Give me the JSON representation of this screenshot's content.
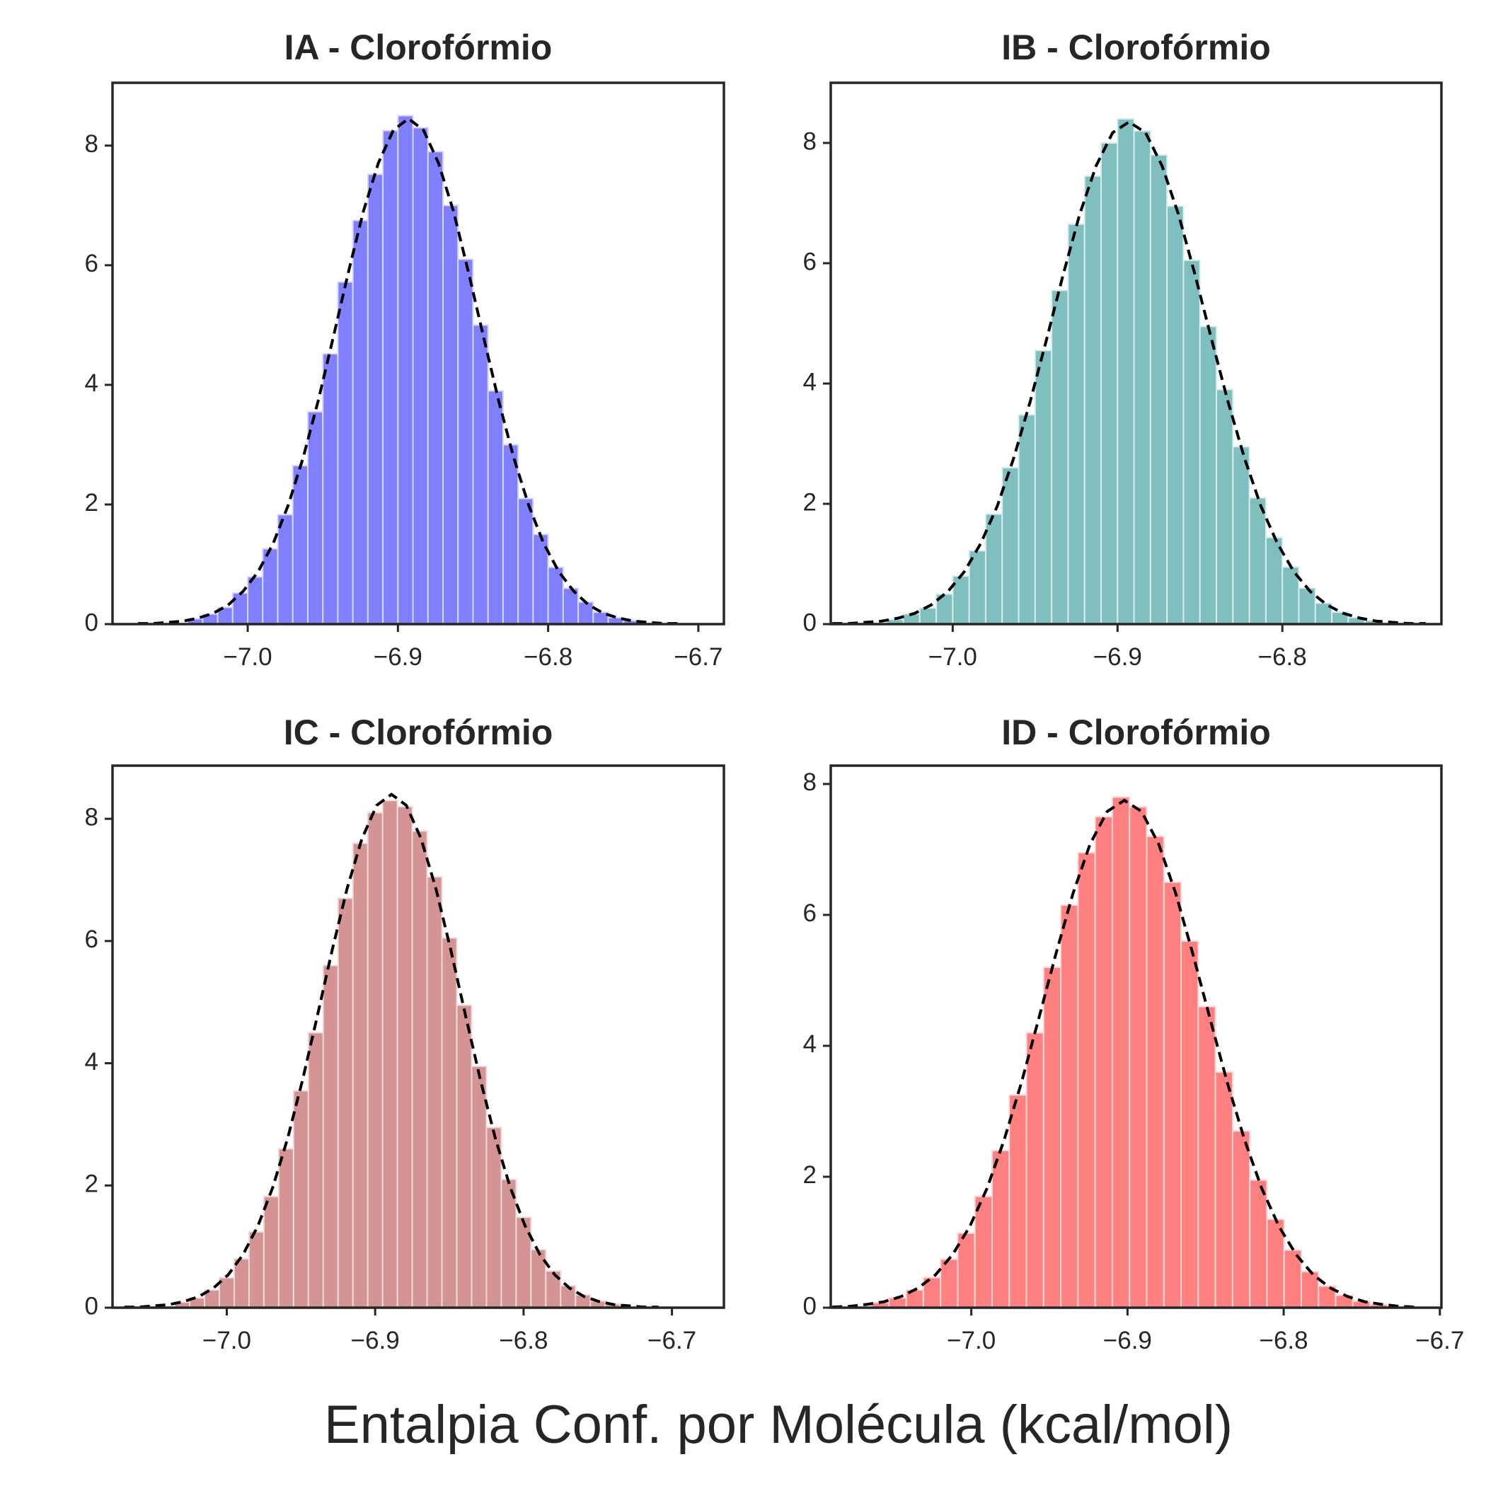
{
  "xlabel": "Entalpia Conf. por Molécula (kcal/mol)",
  "chart_data": [
    {
      "type": "histogram",
      "title": "IA - Clorofórmio",
      "color": "#8080ff",
      "edgecolor": "#d8d8ff",
      "bins": [
        -7.04,
        -7.03,
        -7.02,
        -7.01,
        -7.0,
        -6.99,
        -6.98,
        -6.97,
        -6.96,
        -6.95,
        -6.94,
        -6.93,
        -6.92,
        -6.91,
        -6.9,
        -6.89,
        -6.88,
        -6.87,
        -6.86,
        -6.85,
        -6.84,
        -6.83,
        -6.82,
        -6.81,
        -6.8,
        -6.79,
        -6.78,
        -6.77,
        -6.76,
        -6.75,
        -6.74
      ],
      "values": [
        0.09,
        0.17,
        0.28,
        0.52,
        0.79,
        1.26,
        1.83,
        2.65,
        3.55,
        4.52,
        5.72,
        6.75,
        7.52,
        8.25,
        8.5,
        8.3,
        7.9,
        7.0,
        6.1,
        5.0,
        3.9,
        3.0,
        2.1,
        1.5,
        0.95,
        0.6,
        0.37,
        0.2,
        0.11,
        0.06
      ],
      "fit": {
        "color": "#000000",
        "linestyle": "dashed",
        "x": [
          -7.073,
          -7.063,
          -7.053,
          -7.043,
          -7.033,
          -7.023,
          -7.013,
          -7.003,
          -6.993,
          -6.983,
          -6.973,
          -6.963,
          -6.953,
          -6.943,
          -6.933,
          -6.923,
          -6.913,
          -6.903,
          -6.893,
          -6.883,
          -6.873,
          -6.863,
          -6.853,
          -6.843,
          -6.833,
          -6.823,
          -6.813,
          -6.803,
          -6.793,
          -6.783,
          -6.773,
          -6.763,
          -6.753,
          -6.743,
          -6.733,
          -6.723,
          -6.713
        ],
        "y": [
          0.01,
          0.01,
          0.03,
          0.05,
          0.1,
          0.18,
          0.32,
          0.55,
          0.88,
          1.35,
          1.99,
          2.79,
          3.74,
          4.8,
          5.88,
          6.9,
          7.71,
          8.26,
          8.45,
          8.26,
          7.71,
          6.9,
          5.88,
          4.8,
          3.74,
          2.79,
          1.99,
          1.35,
          0.88,
          0.55,
          0.32,
          0.18,
          0.1,
          0.05,
          0.03,
          0.01,
          0.01
        ]
      },
      "xlim": [
        -7.09,
        -6.683
      ],
      "ylim": [
        0,
        9.05
      ],
      "xticks": [
        {
          "value": -7.0,
          "label": "−7.0"
        },
        {
          "value": -6.9,
          "label": "−6.9"
        },
        {
          "value": -6.8,
          "label": "−6.8"
        },
        {
          "value": -6.7,
          "label": "−6.7"
        }
      ],
      "yticks": [
        0,
        2,
        4,
        6,
        8
      ]
    },
    {
      "type": "histogram",
      "title": "IB - Clorofórmio",
      "color": "#7fbfbf",
      "edgecolor": "#d8eded",
      "bins": [
        -7.04,
        -7.03,
        -7.02,
        -7.01,
        -7.0,
        -6.99,
        -6.98,
        -6.97,
        -6.96,
        -6.95,
        -6.94,
        -6.93,
        -6.92,
        -6.91,
        -6.9,
        -6.89,
        -6.88,
        -6.87,
        -6.86,
        -6.85,
        -6.84,
        -6.83,
        -6.82,
        -6.81,
        -6.8,
        -6.79,
        -6.78,
        -6.77,
        -6.76,
        -6.75,
        -6.74
      ],
      "values": [
        0.08,
        0.17,
        0.27,
        0.5,
        0.8,
        1.22,
        1.83,
        2.6,
        3.48,
        4.55,
        5.55,
        6.65,
        7.45,
        8.0,
        8.4,
        8.2,
        7.8,
        6.95,
        6.05,
        4.95,
        3.9,
        2.95,
        2.1,
        1.44,
        0.95,
        0.6,
        0.35,
        0.2,
        0.11,
        0.06
      ],
      "fit": {
        "color": "#000000",
        "linestyle": "dashed",
        "x": [
          -7.073,
          -7.063,
          -7.053,
          -7.043,
          -7.033,
          -7.023,
          -7.013,
          -7.003,
          -6.993,
          -6.983,
          -6.973,
          -6.963,
          -6.953,
          -6.943,
          -6.933,
          -6.923,
          -6.913,
          -6.903,
          -6.893,
          -6.883,
          -6.873,
          -6.863,
          -6.853,
          -6.843,
          -6.833,
          -6.823,
          -6.813,
          -6.803,
          -6.793,
          -6.783,
          -6.773,
          -6.763,
          -6.753,
          -6.743,
          -6.733,
          -6.723,
          -6.713
        ],
        "y": [
          0.01,
          0.01,
          0.03,
          0.05,
          0.1,
          0.18,
          0.32,
          0.54,
          0.87,
          1.34,
          1.96,
          2.76,
          3.7,
          4.74,
          5.81,
          6.81,
          7.62,
          8.17,
          8.35,
          8.17,
          7.62,
          6.81,
          5.81,
          4.74,
          3.7,
          2.76,
          1.96,
          1.34,
          0.87,
          0.54,
          0.32,
          0.18,
          0.1,
          0.05,
          0.03,
          0.01,
          0.01
        ]
      },
      "xlim": [
        -7.074,
        -6.7035
      ],
      "ylim": [
        0,
        9.0
      ],
      "xticks": [
        {
          "value": -7.0,
          "label": "−7.0"
        },
        {
          "value": -6.9,
          "label": "−6.9"
        },
        {
          "value": -6.8,
          "label": "−6.8"
        }
      ],
      "yticks": [
        0,
        2,
        4,
        6,
        8
      ]
    },
    {
      "type": "histogram",
      "title": "IC - Clorofórmio",
      "color": "#d49494",
      "edgecolor": "#f0dada",
      "bins": [
        -7.035,
        -7.025,
        -7.015,
        -7.005,
        -6.995,
        -6.985,
        -6.975,
        -6.965,
        -6.955,
        -6.945,
        -6.935,
        -6.925,
        -6.915,
        -6.905,
        -6.895,
        -6.885,
        -6.875,
        -6.865,
        -6.855,
        -6.845,
        -6.835,
        -6.825,
        -6.815,
        -6.805,
        -6.795,
        -6.785,
        -6.775,
        -6.765,
        -6.755,
        -6.745,
        -6.735
      ],
      "values": [
        0.09,
        0.16,
        0.29,
        0.49,
        0.8,
        1.24,
        1.82,
        2.6,
        3.55,
        4.5,
        5.6,
        6.7,
        7.6,
        8.1,
        8.3,
        8.2,
        7.8,
        7.05,
        6.05,
        4.95,
        3.95,
        2.95,
        2.1,
        1.48,
        0.95,
        0.6,
        0.36,
        0.21,
        0.11,
        0.06
      ],
      "fit": {
        "color": "#000000",
        "linestyle": "dashed",
        "x": [
          -7.069,
          -7.059,
          -7.049,
          -7.039,
          -7.029,
          -7.019,
          -7.009,
          -6.999,
          -6.989,
          -6.979,
          -6.969,
          -6.959,
          -6.949,
          -6.939,
          -6.929,
          -6.919,
          -6.909,
          -6.899,
          -6.889,
          -6.879,
          -6.869,
          -6.859,
          -6.849,
          -6.839,
          -6.829,
          -6.819,
          -6.809,
          -6.799,
          -6.789,
          -6.779,
          -6.769,
          -6.759,
          -6.749,
          -6.739,
          -6.729,
          -6.719,
          -6.709
        ],
        "y": [
          0.01,
          0.01,
          0.03,
          0.05,
          0.1,
          0.18,
          0.32,
          0.54,
          0.87,
          1.34,
          1.97,
          2.77,
          3.72,
          4.77,
          5.85,
          6.85,
          7.67,
          8.22,
          8.4,
          8.22,
          7.67,
          6.85,
          5.85,
          4.77,
          3.72,
          2.77,
          1.97,
          1.34,
          0.87,
          0.54,
          0.32,
          0.18,
          0.1,
          0.05,
          0.03,
          0.01,
          0.01
        ]
      },
      "xlim": [
        -7.077,
        -6.665
      ],
      "ylim": [
        0,
        8.87
      ],
      "xticks": [
        {
          "value": -7.0,
          "label": "−7.0"
        },
        {
          "value": -6.9,
          "label": "−6.9"
        },
        {
          "value": -6.8,
          "label": "−6.8"
        },
        {
          "value": -6.7,
          "label": "−6.7"
        }
      ],
      "yticks": [
        0,
        2,
        4,
        6,
        8
      ]
    },
    {
      "type": "histogram",
      "title": "ID - Clorofórmio",
      "color": "#ff8080",
      "edgecolor": "#ffd8d8",
      "bins": [
        -7.0637,
        -7.0527,
        -7.0417,
        -7.0307,
        -7.0197,
        -7.0087,
        -6.9977,
        -6.9867,
        -6.9757,
        -6.9647,
        -6.9537,
        -6.9427,
        -6.9317,
        -6.9207,
        -6.9097,
        -6.8987,
        -6.8877,
        -6.8767,
        -6.8657,
        -6.8547,
        -6.8437,
        -6.8327,
        -6.8217,
        -6.8107,
        -6.7997,
        -6.7887,
        -6.7777,
        -6.7667,
        -6.7557,
        -6.7447,
        -6.7337
      ],
      "values": [
        0.08,
        0.15,
        0.27,
        0.46,
        0.74,
        1.14,
        1.7,
        2.4,
        3.25,
        4.2,
        5.2,
        6.15,
        6.95,
        7.5,
        7.8,
        7.65,
        7.2,
        6.5,
        5.6,
        4.6,
        3.6,
        2.7,
        1.95,
        1.35,
        0.88,
        0.55,
        0.33,
        0.19,
        0.1,
        0.05
      ],
      "fit": {
        "color": "#000000",
        "linestyle": "dashed",
        "x": [
          -7.089,
          -7.078,
          -7.067,
          -7.056,
          -7.045,
          -7.034,
          -7.023,
          -7.012,
          -7.001,
          -6.99,
          -6.979,
          -6.968,
          -6.957,
          -6.946,
          -6.935,
          -6.924,
          -6.913,
          -6.902,
          -6.891,
          -6.88,
          -6.869,
          -6.858,
          -6.847,
          -6.836,
          -6.825,
          -6.814,
          -6.803,
          -6.792,
          -6.781,
          -6.77,
          -6.759,
          -6.748,
          -6.737,
          -6.726,
          -6.715
        ],
        "y": [
          0.01,
          0.02,
          0.05,
          0.09,
          0.17,
          0.3,
          0.5,
          0.81,
          1.24,
          1.82,
          2.56,
          3.43,
          4.4,
          5.39,
          6.32,
          7.08,
          7.58,
          7.75,
          7.58,
          7.08,
          6.32,
          5.39,
          4.4,
          3.43,
          2.56,
          1.82,
          1.24,
          0.81,
          0.5,
          0.3,
          0.17,
          0.09,
          0.05,
          0.02,
          0.01
        ]
      },
      "xlim": [
        -7.09,
        -6.699
      ],
      "ylim": [
        0,
        8.28
      ],
      "xticks": [
        {
          "value": -7.0,
          "label": "−7.0"
        },
        {
          "value": -6.9,
          "label": "−6.9"
        },
        {
          "value": -6.8,
          "label": "−6.8"
        },
        {
          "value": -6.7,
          "label": "−6.7"
        }
      ],
      "yticks": [
        0,
        2,
        4,
        6,
        8
      ]
    }
  ]
}
